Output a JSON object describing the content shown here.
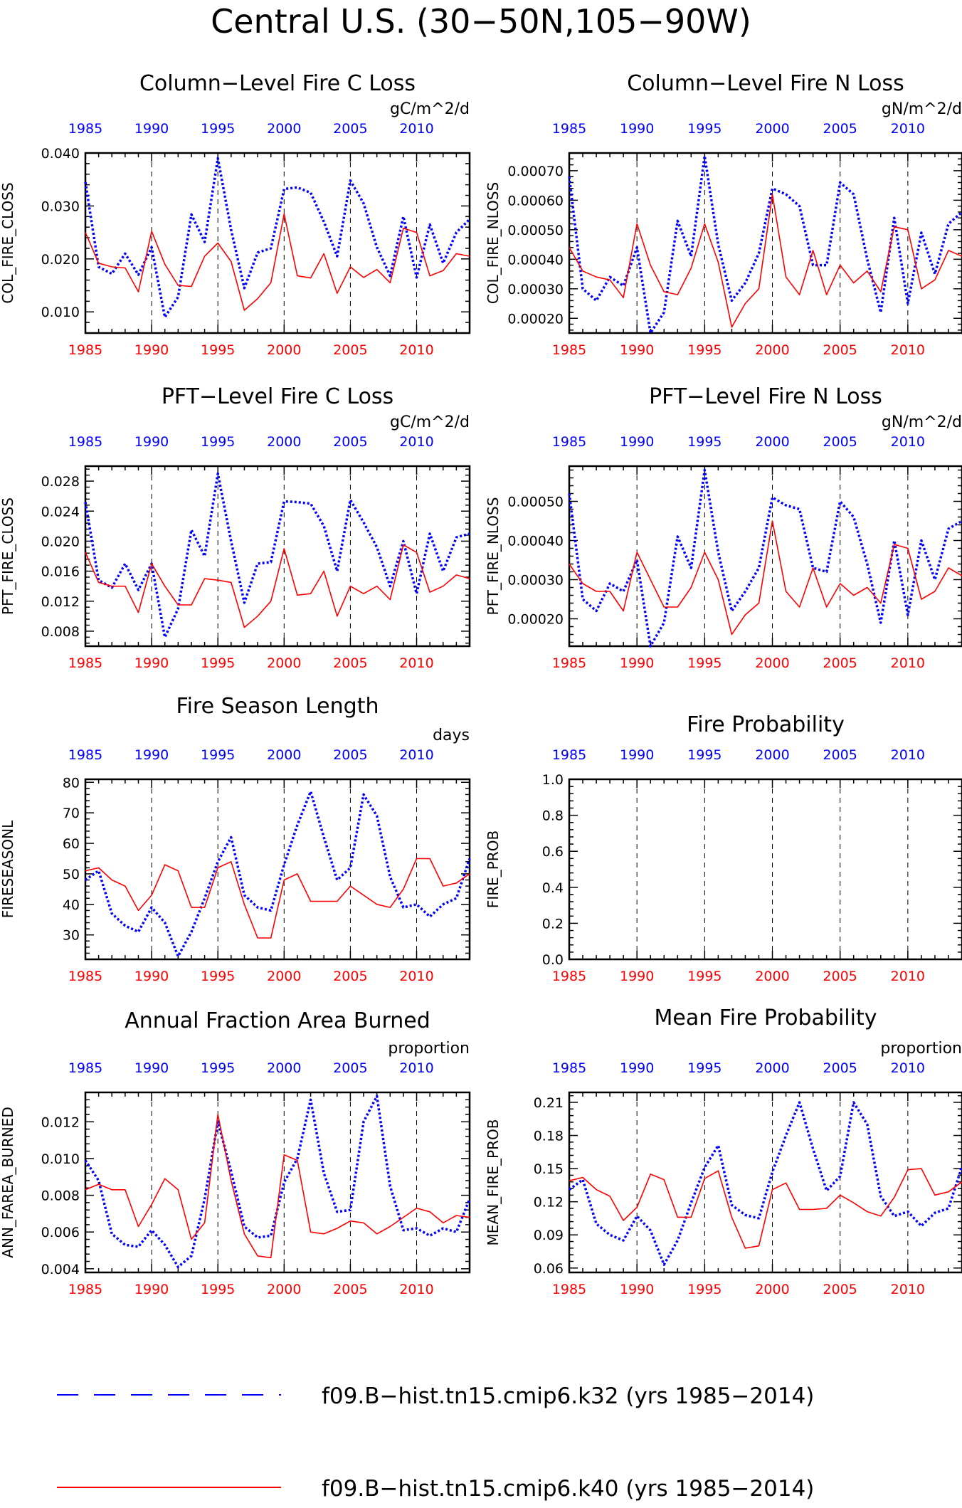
{
  "page": {
    "title": "Central U.S. (30−50N,105−90W)"
  },
  "colors": {
    "series1": "#0000ff",
    "series2": "#ff0000",
    "axes": "#000000",
    "grid": "#000000"
  },
  "legend": {
    "placement": "bottom",
    "items": [
      {
        "label": "f09.B−hist.tn15.cmip6.k32 (yrs 1985−2014)",
        "color": "#0000ff",
        "style": "dashed"
      },
      {
        "label": "f09.B−hist.tn15.cmip6.k40 (yrs 1985−2014)",
        "color": "#ff0000",
        "style": "solid"
      }
    ]
  },
  "chart_data": [
    {
      "type": "line",
      "title": "Column−Level Fire C Loss",
      "ylabel": "COL_FIRE_CLOSS",
      "units": "gC/m^2/d",
      "xlim": [
        1985,
        2014
      ],
      "ylim": [
        0.006,
        0.04
      ],
      "yticks": [
        "0.010",
        "0.020",
        "0.030",
        "0.040"
      ],
      "xticks": [
        "1985",
        "1990",
        "1995",
        "2000",
        "2005",
        "2010"
      ],
      "grid": "vertical dashed at 1990,1995,2000,2005,2010",
      "series": [
        {
          "values": [
            0.0345,
            0.0185,
            0.0172,
            0.021,
            0.017,
            0.0222,
            0.009,
            0.0128,
            0.0284,
            0.0232,
            0.039,
            0.0255,
            0.0145,
            0.0212,
            0.022,
            0.0332,
            0.0335,
            0.0325,
            0.027,
            0.0205,
            0.0348,
            0.0305,
            0.0222,
            0.0168,
            0.028,
            0.0165,
            0.0265,
            0.0192,
            0.025,
            0.0275
          ]
        },
        {
          "values": [
            0.025,
            0.0192,
            0.0185,
            0.0183,
            0.0138,
            0.0252,
            0.019,
            0.015,
            0.0148,
            0.0205,
            0.023,
            0.0195,
            0.0103,
            0.0125,
            0.0155,
            0.0285,
            0.0168,
            0.0164,
            0.021,
            0.0135,
            0.0185,
            0.0165,
            0.018,
            0.0155,
            0.0258,
            0.025,
            0.0168,
            0.0178,
            0.021,
            0.0205
          ]
        }
      ]
    },
    {
      "type": "line",
      "title": "Column−Level Fire N Loss",
      "ylabel": "COL_FIRE_NLOSS",
      "units": "gN/m^2/d",
      "xlim": [
        1985,
        2014
      ],
      "ylim": [
        0.00015,
        0.00076
      ],
      "yticks": [
        "0.00020",
        "0.00030",
        "0.00040",
        "0.00050",
        "0.00060",
        "0.00070"
      ],
      "xticks": [
        "1985",
        "1990",
        "1995",
        "2000",
        "2005",
        "2010"
      ],
      "grid": "vertical dashed at 1990,1995,2000,2005,2010",
      "series": [
        {
          "values": [
            0.00068,
            0.0003,
            0.00026,
            0.00034,
            0.00031,
            0.00044,
            0.00015,
            0.00022,
            0.00053,
            0.00041,
            0.00075,
            0.00045,
            0.00026,
            0.00032,
            0.00042,
            0.00064,
            0.00062,
            0.00058,
            0.00038,
            0.00038,
            0.00066,
            0.00062,
            0.0004,
            0.00022,
            0.00054,
            0.00025,
            0.00049,
            0.00035,
            0.00052,
            0.00056
          ]
        },
        {
          "values": [
            0.00044,
            0.00036,
            0.00034,
            0.00033,
            0.00027,
            0.00052,
            0.00038,
            0.00029,
            0.00028,
            0.00037,
            0.00052,
            0.00039,
            0.00017,
            0.00025,
            0.0003,
            0.00062,
            0.00034,
            0.00028,
            0.00043,
            0.00028,
            0.00038,
            0.00032,
            0.00036,
            0.00029,
            0.00051,
            0.0005,
            0.0003,
            0.00033,
            0.00043,
            0.00041
          ]
        }
      ]
    },
    {
      "type": "line",
      "title": "PFT−Level Fire C Loss",
      "ylabel": "PFT_FIRE_CLOSS",
      "units": "gC/m^2/d",
      "xlim": [
        1985,
        2014
      ],
      "ylim": [
        0.006,
        0.03
      ],
      "yticks": [
        "0.008",
        "0.012",
        "0.016",
        "0.020",
        "0.024",
        "0.028"
      ],
      "xticks": [
        "1985",
        "1990",
        "1995",
        "2000",
        "2005",
        "2010"
      ],
      "grid": "vertical dashed at 1990,1995,2000,2005,2010",
      "series": [
        {
          "values": [
            0.0252,
            0.0148,
            0.0138,
            0.017,
            0.0135,
            0.017,
            0.0072,
            0.011,
            0.0215,
            0.018,
            0.029,
            0.02,
            0.0118,
            0.017,
            0.0172,
            0.0253,
            0.0252,
            0.025,
            0.022,
            0.016,
            0.0255,
            0.0225,
            0.0192,
            0.014,
            0.02,
            0.013,
            0.021,
            0.016,
            0.0205,
            0.021
          ]
        },
        {
          "values": [
            0.0185,
            0.0145,
            0.014,
            0.014,
            0.0105,
            0.017,
            0.014,
            0.0115,
            0.0115,
            0.015,
            0.0148,
            0.0145,
            0.0085,
            0.01,
            0.012,
            0.019,
            0.0128,
            0.013,
            0.016,
            0.01,
            0.014,
            0.013,
            0.014,
            0.0122,
            0.0195,
            0.0185,
            0.0132,
            0.014,
            0.0155,
            0.015
          ]
        }
      ]
    },
    {
      "type": "line",
      "title": "PFT−Level Fire N Loss",
      "ylabel": "PFT_FIRE_NLOSS",
      "units": "gN/m^2/d",
      "xlim": [
        1985,
        2014
      ],
      "ylim": [
        0.00013,
        0.00059
      ],
      "yticks": [
        "0.00020",
        "0.00030",
        "0.00040",
        "0.00050"
      ],
      "xticks": [
        "1985",
        "1990",
        "1995",
        "2000",
        "2005",
        "2010"
      ],
      "grid": "vertical dashed at 1990,1995,2000,2005,2010",
      "series": [
        {
          "values": [
            0.00052,
            0.00025,
            0.00022,
            0.00029,
            0.00027,
            0.00035,
            0.00013,
            0.00019,
            0.00041,
            0.00033,
            0.00058,
            0.00037,
            0.00022,
            0.00027,
            0.00033,
            0.00051,
            0.00049,
            0.00048,
            0.00033,
            0.00032,
            0.0005,
            0.00046,
            0.00034,
            0.00019,
            0.0004,
            0.00021,
            0.0004,
            0.0003,
            0.00043,
            0.00045
          ]
        },
        {
          "values": [
            0.00034,
            0.00029,
            0.00027,
            0.00027,
            0.00022,
            0.00037,
            0.0003,
            0.00023,
            0.00023,
            0.00028,
            0.00037,
            0.0003,
            0.00016,
            0.00021,
            0.00024,
            0.00045,
            0.00027,
            0.00023,
            0.00033,
            0.00023,
            0.00029,
            0.00026,
            0.00028,
            0.00024,
            0.00039,
            0.00038,
            0.00025,
            0.00027,
            0.00033,
            0.00031
          ]
        }
      ]
    },
    {
      "type": "line",
      "title": "Fire Season Length",
      "ylabel": "FIRESEASONL",
      "units": "days",
      "xlim": [
        1985,
        2014
      ],
      "ylim": [
        22,
        81
      ],
      "yticks": [
        "30",
        "40",
        "50",
        "60",
        "70",
        "80"
      ],
      "xticks": [
        "1985",
        "1990",
        "1995",
        "2000",
        "2005",
        "2010"
      ],
      "grid": "vertical dashed at 1990,1995,2000,2005,2010",
      "series": [
        {
          "values": [
            48,
            51,
            37,
            33,
            31,
            39,
            34,
            23,
            31,
            42,
            54,
            62,
            43,
            39,
            38,
            53,
            66,
            77,
            62,
            48,
            52,
            76,
            69,
            49,
            39,
            40,
            36,
            40,
            42,
            55
          ]
        },
        {
          "values": [
            51,
            52,
            48,
            46,
            38,
            43,
            53,
            51,
            39,
            39,
            52,
            54,
            40,
            29,
            29,
            48,
            50,
            41,
            41,
            41,
            46,
            43,
            40,
            39,
            45,
            55,
            55,
            46,
            47,
            50
          ]
        }
      ]
    },
    {
      "type": "line",
      "title": "Fire Probability",
      "ylabel": "FIRE_PROB",
      "units": "",
      "xlim": [
        1985,
        2014
      ],
      "ylim": [
        0.0,
        1.0
      ],
      "yticks": [
        "0.0",
        "0.2",
        "0.4",
        "0.6",
        "0.8",
        "1.0"
      ],
      "xticks": [
        "1985",
        "1990",
        "1995",
        "2000",
        "2005",
        "2010"
      ],
      "grid": "vertical dashed at 1990,1995,2000,2005,2010",
      "series": []
    },
    {
      "type": "line",
      "title": "Annual Fraction Area Burned",
      "ylabel": "ANN_FAREA_BURNED",
      "units": "proportion",
      "xlim": [
        1985,
        2014
      ],
      "ylim": [
        0.0038,
        0.0136
      ],
      "yticks": [
        "0.004",
        "0.006",
        "0.008",
        "0.010",
        "0.012"
      ],
      "xticks": [
        "1985",
        "1990",
        "1995",
        "2000",
        "2005",
        "2010"
      ],
      "grid": "vertical dashed at 1990,1995,2000,2005,2010",
      "series": [
        {
          "values": [
            0.0099,
            0.0088,
            0.0059,
            0.0053,
            0.0052,
            0.0061,
            0.0053,
            0.0041,
            0.0047,
            0.0078,
            0.012,
            0.0093,
            0.0063,
            0.0057,
            0.0058,
            0.0087,
            0.01,
            0.0132,
            0.0092,
            0.0071,
            0.0072,
            0.012,
            0.0134,
            0.0085,
            0.0061,
            0.0062,
            0.0058,
            0.0062,
            0.006,
            0.0078
          ]
        },
        {
          "values": [
            0.0083,
            0.0086,
            0.0083,
            0.0083,
            0.0063,
            0.0075,
            0.0089,
            0.0083,
            0.0056,
            0.0065,
            0.0124,
            0.0088,
            0.0059,
            0.0047,
            0.0046,
            0.0102,
            0.0099,
            0.006,
            0.0059,
            0.0062,
            0.0066,
            0.0065,
            0.0059,
            0.0063,
            0.0068,
            0.0073,
            0.0071,
            0.0065,
            0.0069,
            0.0068
          ]
        }
      ]
    },
    {
      "type": "line",
      "title": "Mean Fire Probability",
      "ylabel": "MEAN_FIRE_PROB",
      "units": "proportion",
      "xlim": [
        1985,
        2014
      ],
      "ylim": [
        0.056,
        0.219
      ],
      "yticks": [
        "0.06",
        "0.09",
        "0.12",
        "0.15",
        "0.18",
        "0.21"
      ],
      "xticks": [
        "1985",
        "1990",
        "1995",
        "2000",
        "2005",
        "2010"
      ],
      "grid": "vertical dashed at 1990,1995,2000,2005,2010",
      "series": [
        {
          "values": [
            0.131,
            0.14,
            0.1,
            0.09,
            0.085,
            0.107,
            0.094,
            0.063,
            0.085,
            0.119,
            0.151,
            0.171,
            0.117,
            0.108,
            0.105,
            0.147,
            0.18,
            0.21,
            0.168,
            0.13,
            0.143,
            0.21,
            0.19,
            0.125,
            0.107,
            0.111,
            0.098,
            0.11,
            0.114,
            0.152
          ]
        },
        {
          "values": [
            0.139,
            0.142,
            0.131,
            0.125,
            0.103,
            0.115,
            0.145,
            0.14,
            0.106,
            0.106,
            0.141,
            0.148,
            0.106,
            0.078,
            0.08,
            0.131,
            0.137,
            0.113,
            0.113,
            0.114,
            0.126,
            0.119,
            0.111,
            0.107,
            0.124,
            0.149,
            0.15,
            0.126,
            0.129,
            0.138
          ]
        }
      ]
    }
  ]
}
